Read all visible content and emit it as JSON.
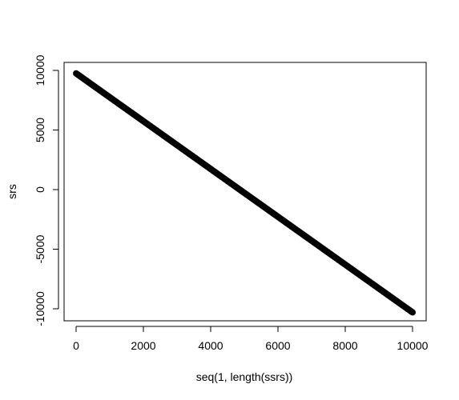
{
  "chart_data": {
    "type": "scatter",
    "title": "",
    "xlabel": "seq(1, length(ssrs))",
    "ylabel": "srs",
    "xlim": [
      1,
      10000
    ],
    "ylim": [
      -10300,
      9750
    ],
    "x_ticks": [
      {
        "value": 0,
        "label": "0"
      },
      {
        "value": 2000,
        "label": "2000"
      },
      {
        "value": 4000,
        "label": "4000"
      },
      {
        "value": 6000,
        "label": "6000"
      },
      {
        "value": 8000,
        "label": "8000"
      },
      {
        "value": 10000,
        "label": "10000"
      }
    ],
    "y_ticks": [
      {
        "value": 10000,
        "label": "10000"
      },
      {
        "value": 5000,
        "label": "5000"
      },
      {
        "value": 0,
        "label": "0"
      },
      {
        "value": -5000,
        "label": "-5000"
      },
      {
        "value": -10000,
        "label": "-10000"
      }
    ],
    "grid": false,
    "series": [
      {
        "x": [
          1,
          500,
          1000,
          1500,
          2000,
          2500,
          3000,
          3500,
          4000,
          4500,
          5000,
          5500,
          6000,
          6500,
          7000,
          7500,
          8000,
          8500,
          9000,
          9500,
          10000
        ],
        "y": [
          9750,
          8747,
          7745,
          6742,
          5740,
          4737,
          3735,
          2732,
          1730,
          727,
          -275,
          -1278,
          -2280,
          -3283,
          -4285,
          -5288,
          -6290,
          -7293,
          -8295,
          -9298,
          -10300
        ],
        "color": "#000000"
      }
    ]
  }
}
